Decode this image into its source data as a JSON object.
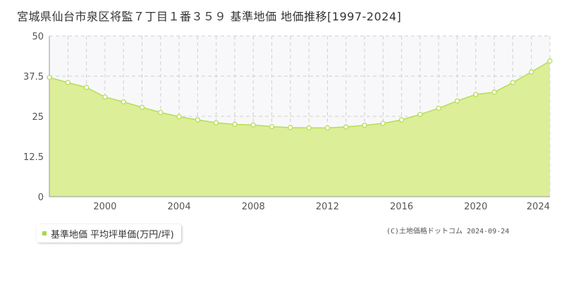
{
  "title": "宮城県仙台市泉区将監７丁目１番３５９ 基準地価 地価推移[1997-2024]",
  "legend_label": "基準地価 平均坪単価(万円/坪)",
  "credit": "(C)土地価格ドットコム 2024-09-24",
  "colors": {
    "fill": "#dcee98",
    "line": "#b6dd55",
    "upper": "#f8f8fa",
    "grid": "#d0d0d0",
    "axis": "#999999"
  },
  "chart_data": {
    "type": "area",
    "series": [
      {
        "name": "基準地価 平均坪単価(万円/坪)",
        "x": [
          1997,
          1998,
          1999,
          2000,
          2001,
          2002,
          2003,
          2004,
          2005,
          2006,
          2007,
          2008,
          2009,
          2010,
          2011,
          2012,
          2013,
          2014,
          2015,
          2016,
          2017,
          2018,
          2019,
          2020,
          2021,
          2022,
          2023,
          2024
        ],
        "values": [
          37.1,
          35.5,
          34.0,
          31.0,
          29.5,
          27.8,
          26.2,
          24.9,
          23.9,
          23.0,
          22.5,
          22.3,
          21.8,
          21.5,
          21.4,
          21.4,
          21.7,
          22.2,
          22.8,
          23.9,
          25.6,
          27.5,
          29.8,
          31.8,
          32.5,
          35.5,
          38.8,
          42.2
        ]
      }
    ],
    "xlim": [
      1997,
      2024
    ],
    "xticks": [
      2000,
      2004,
      2008,
      2012,
      2016,
      2020,
      2024
    ],
    "ylim": [
      0,
      50
    ],
    "yticks": [
      0,
      12.5,
      25,
      37.5,
      50
    ],
    "ytick_labels": [
      "0",
      "12.5",
      "25",
      "37.5",
      "50"
    ],
    "grid": true
  }
}
